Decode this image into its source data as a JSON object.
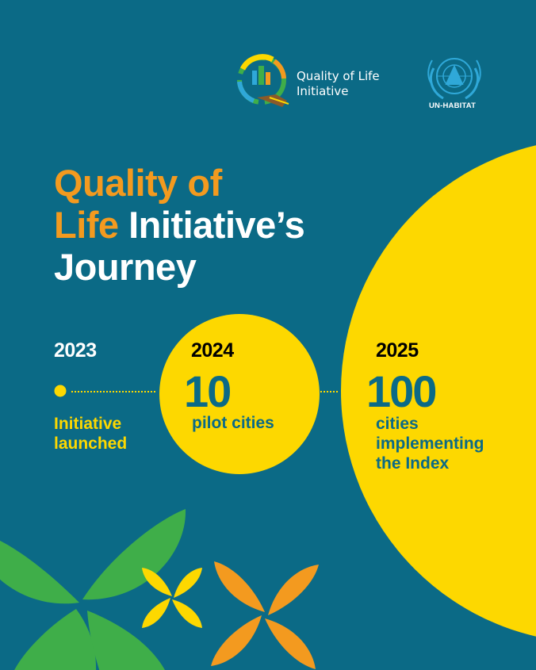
{
  "header": {
    "qol_logo_line1": "Quality of Life",
    "qol_logo_line2": "Initiative",
    "un_habitat_label": "UN-HABITAT"
  },
  "title": {
    "line1_orange": "Quality of",
    "line2_orange": "Life",
    "line2_white": "Initiative’s",
    "line3_white": "Journey"
  },
  "timeline": [
    {
      "year": "2023",
      "label_line1": "Initiative",
      "label_line2": "launched"
    },
    {
      "year": "2024",
      "number": "10",
      "label_line1": "pilot cities"
    },
    {
      "year": "2025",
      "number": "100",
      "label_line1": "cities",
      "label_line2": "implementing",
      "label_line3": "the Index"
    }
  ],
  "colors": {
    "background": "#0b6a86",
    "yellow": "#fdd800",
    "orange": "#f39a1f",
    "green": "#3fae49",
    "dark_teal": "#0b6a86",
    "white": "#ffffff"
  },
  "icons": [
    "quality-of-life-logo-icon",
    "un-habitat-emblem-icon",
    "timeline-dot-icon",
    "leaf-decoration-icon",
    "flower-decoration-icon"
  ]
}
